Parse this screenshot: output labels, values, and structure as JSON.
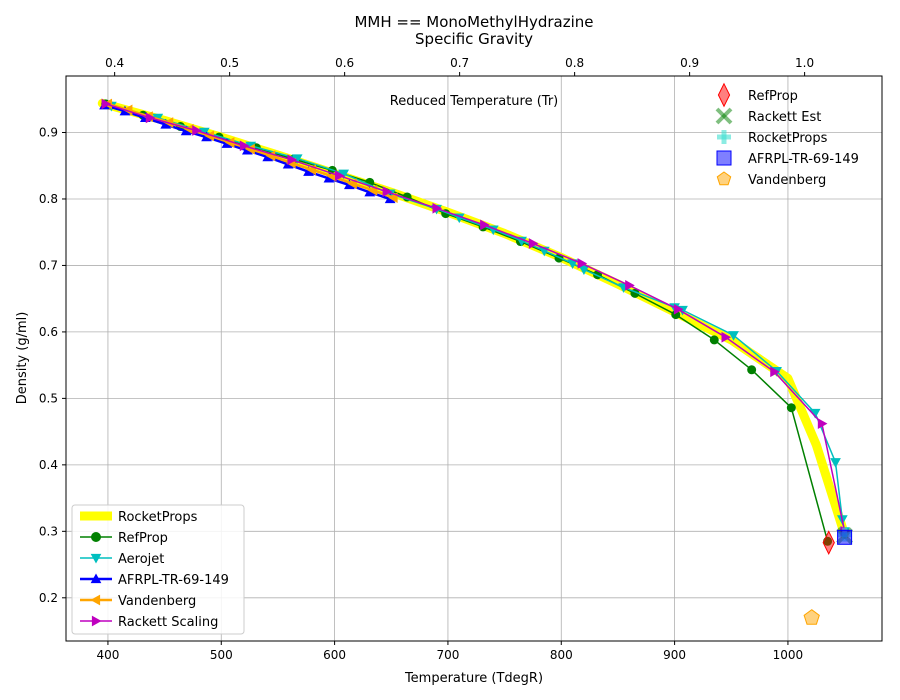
{
  "chart_data": {
    "type": "line",
    "title": "MMH == MonoMethylHydrazine",
    "subtitle": "Specific Gravity",
    "xlabel": "Temperature (TdegR)",
    "ylabel": "Density (g/ml)",
    "top_axis_label": "Reduced Temperature (Tr)",
    "xlim": [
      363,
      1083
    ],
    "ylim": [
      0.135,
      0.985
    ],
    "top_xlim_tr": [
      0.3577,
      1.0673
    ],
    "grid": true,
    "x_ticks": [
      400,
      500,
      600,
      700,
      800,
      900,
      1000
    ],
    "y_ticks": [
      0.2,
      0.3,
      0.4,
      0.5,
      0.6,
      0.7,
      0.8,
      0.9
    ],
    "y_tick_labels": [
      "0.2",
      "0.3",
      "0.4",
      "0.5",
      "0.6",
      "0.7",
      "0.8",
      "0.9"
    ],
    "top_ticks": [
      0.4,
      0.5,
      0.6,
      0.7,
      0.8,
      0.9,
      1.0
    ],
    "legend_lines_position": "lower-left",
    "legend_points_position": "upper-right",
    "series": [
      {
        "name": "RocketProps",
        "color": "#ffff00",
        "width": 9,
        "marker": "none",
        "x": [
          395,
          450,
          500,
          550,
          600,
          650,
          700,
          750,
          800,
          850,
          900,
          950,
          1000,
          1025,
          1050
        ],
        "y": [
          0.944,
          0.918,
          0.893,
          0.866,
          0.838,
          0.81,
          0.78,
          0.748,
          0.712,
          0.672,
          0.63,
          0.588,
          0.53,
          0.43,
          0.295
        ]
      },
      {
        "name": "RefProp",
        "color": "#008000",
        "width": 1.5,
        "marker": "circle",
        "x": [
          398,
          431,
          464,
          498,
          531,
          564,
          598,
          631,
          664,
          698,
          731,
          764,
          798,
          832,
          865,
          901,
          935,
          968,
          1003,
          1035
        ],
        "y": [
          0.943,
          0.926,
          0.909,
          0.893,
          0.877,
          0.86,
          0.843,
          0.825,
          0.803,
          0.778,
          0.758,
          0.736,
          0.711,
          0.686,
          0.658,
          0.626,
          0.588,
          0.543,
          0.486,
          0.285
        ]
      },
      {
        "name": "Aerojet",
        "color": "#00bfbf",
        "width": 1.5,
        "marker": "triangle-down",
        "x": [
          403,
          444,
          485,
          526,
          567,
          608,
          649,
          690,
          710,
          740,
          765,
          785,
          810,
          820,
          855,
          900,
          907,
          952,
          990,
          1024,
          1042,
          1048,
          1050
        ],
        "y": [
          0.94,
          0.922,
          0.901,
          0.88,
          0.861,
          0.838,
          0.808,
          0.785,
          0.772,
          0.754,
          0.737,
          0.722,
          0.703,
          0.694,
          0.667,
          0.637,
          0.633,
          0.595,
          0.541,
          0.478,
          0.404,
          0.318,
          0.3
        ]
      },
      {
        "name": "AFRPL-TR-69-149",
        "color": "#0000ff",
        "width": 2.5,
        "marker": "triangle-up",
        "x": [
          397,
          415,
          433,
          451,
          469,
          487,
          505,
          523,
          541,
          559,
          577,
          595,
          613,
          631,
          649
        ],
        "y": [
          0.941,
          0.932,
          0.922,
          0.912,
          0.902,
          0.893,
          0.883,
          0.873,
          0.863,
          0.852,
          0.841,
          0.831,
          0.821,
          0.81,
          0.8
        ]
      },
      {
        "name": "Vandenberg",
        "color": "#ffa500",
        "width": 2.5,
        "marker": "triangle-left",
        "x": [
          400,
          418,
          436,
          454,
          472,
          490,
          508,
          526,
          544,
          562,
          580,
          598,
          616,
          634,
          652
        ],
        "y": [
          0.943,
          0.934,
          0.924,
          0.915,
          0.905,
          0.895,
          0.885,
          0.875,
          0.865,
          0.854,
          0.844,
          0.834,
          0.823,
          0.813,
          0.802
        ]
      },
      {
        "name": "Rackett Scaling",
        "color": "#bf00bf",
        "width": 1.5,
        "marker": "triangle-right",
        "x": [
          398,
          437,
          478,
          520,
          562,
          604,
          646,
          690,
          732,
          775,
          818,
          860,
          903,
          945,
          988,
          1030,
          1050
        ],
        "y": [
          0.943,
          0.922,
          0.903,
          0.88,
          0.859,
          0.835,
          0.811,
          0.786,
          0.761,
          0.733,
          0.703,
          0.67,
          0.634,
          0.592,
          0.54,
          0.462,
          0.3
        ]
      }
    ],
    "points": [
      {
        "name": "RefProp",
        "color": "#ff0000",
        "shape": "thin-diamond",
        "x": 1036,
        "y": 0.283
      },
      {
        "name": "Rackett Est",
        "color": "#008000",
        "shape": "x",
        "x": 1050,
        "y": 0.293
      },
      {
        "name": "RocketProps",
        "color": "#40e0d0",
        "shape": "plus",
        "x": 1050,
        "y": 0.295
      },
      {
        "name": "AFRPL-TR-69-149",
        "color": "#0000ff",
        "shape": "square",
        "x": 1050,
        "y": 0.291
      },
      {
        "name": "Vandenberg",
        "color": "#ffa500",
        "shape": "pentagon",
        "x": 1021,
        "y": 0.17
      }
    ]
  }
}
